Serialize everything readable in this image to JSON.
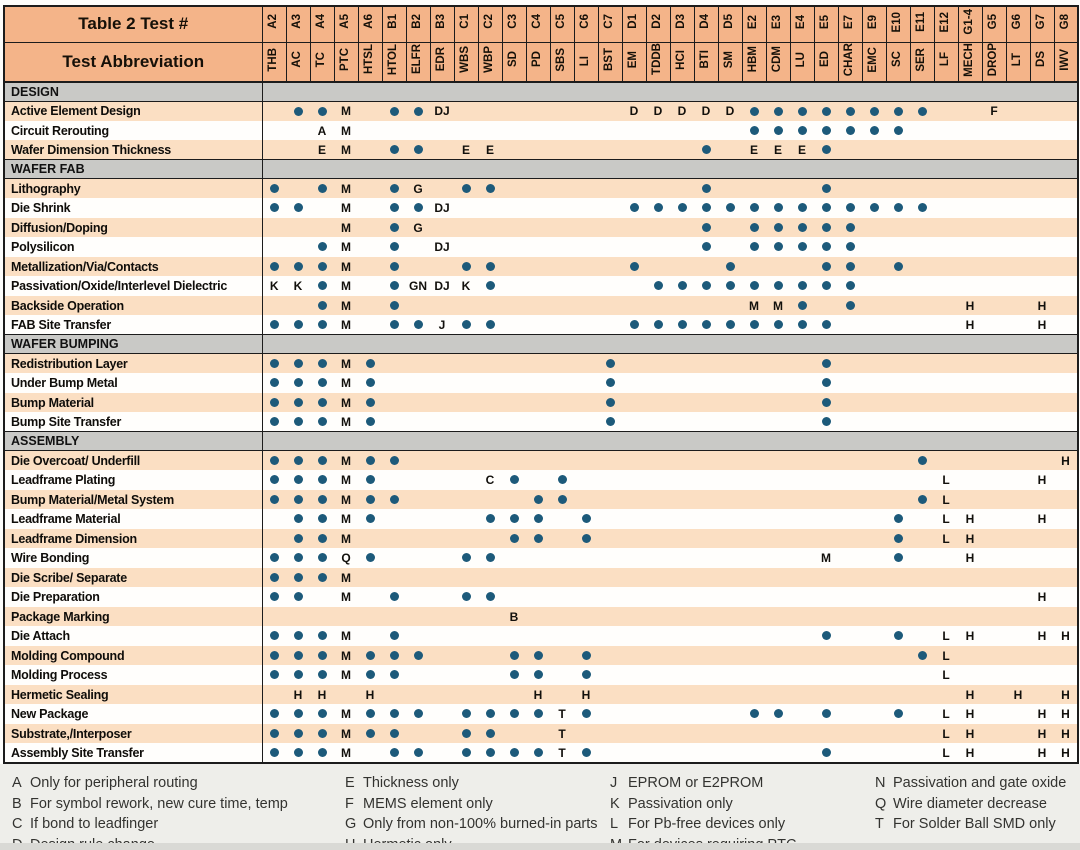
{
  "header": {
    "test_number_label": "Table 2 Test #",
    "abbreviation_label": "Test Abbreviation",
    "columns": [
      {
        "num": "A2",
        "abbr": "THB"
      },
      {
        "num": "A3",
        "abbr": "AC"
      },
      {
        "num": "A4",
        "abbr": "TC"
      },
      {
        "num": "A5",
        "abbr": "PTC"
      },
      {
        "num": "A6",
        "abbr": "HTSL"
      },
      {
        "num": "B1",
        "abbr": "HTOL"
      },
      {
        "num": "B2",
        "abbr": "ELFR"
      },
      {
        "num": "B3",
        "abbr": "EDR"
      },
      {
        "num": "C1",
        "abbr": "WBS"
      },
      {
        "num": "C2",
        "abbr": "WBP"
      },
      {
        "num": "C3",
        "abbr": "SD"
      },
      {
        "num": "C4",
        "abbr": "PD"
      },
      {
        "num": "C5",
        "abbr": "SBS"
      },
      {
        "num": "C6",
        "abbr": "LI"
      },
      {
        "num": "C7",
        "abbr": "BST"
      },
      {
        "num": "D1",
        "abbr": "EM"
      },
      {
        "num": "D2",
        "abbr": "TDDB"
      },
      {
        "num": "D3",
        "abbr": "HCI"
      },
      {
        "num": "D4",
        "abbr": "BTI"
      },
      {
        "num": "D5",
        "abbr": "SM"
      },
      {
        "num": "E2",
        "abbr": "HBM"
      },
      {
        "num": "E3",
        "abbr": "CDM"
      },
      {
        "num": "E4",
        "abbr": "LU"
      },
      {
        "num": "E5",
        "abbr": "ED"
      },
      {
        "num": "E7",
        "abbr": "CHAR"
      },
      {
        "num": "E9",
        "abbr": "EMC"
      },
      {
        "num": "E10",
        "abbr": "SC"
      },
      {
        "num": "E11",
        "abbr": "SER"
      },
      {
        "num": "E12",
        "abbr": "LF"
      },
      {
        "num": "G1-4",
        "abbr": "MECH"
      },
      {
        "num": "G5",
        "abbr": "DROP"
      },
      {
        "num": "G6",
        "abbr": "LT"
      },
      {
        "num": "G7",
        "abbr": "DS"
      },
      {
        "num": "G8",
        "abbr": "IWV"
      }
    ]
  },
  "sections": [
    {
      "name": "DESIGN",
      "rows": [
        {
          "label": "Active Element Design",
          "marks": {
            "A3": "●",
            "A4": "●",
            "A5": "M",
            "B1": "●",
            "B2": "●",
            "B3": "DJ",
            "D1": "D",
            "D2": "D",
            "D3": "D",
            "D4": "D",
            "D5": "D",
            "E2": "●",
            "E3": "●",
            "E4": "●",
            "E5": "●",
            "E7": "●",
            "E9": "●",
            "E10": "●",
            "E11": "●",
            "G5": "F"
          }
        },
        {
          "label": "Circuit Rerouting",
          "marks": {
            "A4": "A",
            "A5": "M",
            "E2": "●",
            "E3": "●",
            "E4": "●",
            "E5": "●",
            "E7": "●",
            "E9": "●",
            "E10": "●"
          }
        },
        {
          "label": "Wafer Dimension Thickness",
          "marks": {
            "A4": "E",
            "A5": "M",
            "B1": "●",
            "B2": "●",
            "C1": "E",
            "C2": "E",
            "D4": "●",
            "E2": "E",
            "E3": "E",
            "E4": "E",
            "E5": "●"
          }
        }
      ]
    },
    {
      "name": "WAFER FAB",
      "rows": [
        {
          "label": "Lithography",
          "marks": {
            "A2": "●",
            "A4": "●",
            "A5": "M",
            "B1": "●",
            "B2": "G",
            "C1": "●",
            "C2": "●",
            "D4": "●",
            "E5": "●"
          }
        },
        {
          "label": "Die Shrink",
          "marks": {
            "A2": "●",
            "A3": "●",
            "A5": "M",
            "B1": "●",
            "B2": "●",
            "B3": "DJ",
            "D1": "●",
            "D2": "●",
            "D3": "●",
            "D4": "●",
            "D5": "●",
            "E2": "●",
            "E3": "●",
            "E4": "●",
            "E5": "●",
            "E7": "●",
            "E9": "●",
            "E10": "●",
            "E11": "●"
          }
        },
        {
          "label": "Diffusion/Doping",
          "marks": {
            "A5": "M",
            "B1": "●",
            "B2": "G",
            "D4": "●",
            "E2": "●",
            "E3": "●",
            "E4": "●",
            "E5": "●",
            "E7": "●"
          }
        },
        {
          "label": "Polysilicon",
          "marks": {
            "A4": "●",
            "A5": "M",
            "B1": "●",
            "B3": "DJ",
            "D4": "●",
            "E2": "●",
            "E3": "●",
            "E4": "●",
            "E5": "●",
            "E7": "●"
          }
        },
        {
          "label": "Metallization/Via/Contacts",
          "marks": {
            "A2": "●",
            "A3": "●",
            "A4": "●",
            "A5": "M",
            "B1": "●",
            "C1": "●",
            "C2": "●",
            "D1": "●",
            "D5": "●",
            "E5": "●",
            "E7": "●",
            "E10": "●"
          }
        },
        {
          "label": "Passivation/Oxide/Interlevel Dielectric",
          "marks": {
            "A2": "K",
            "A3": "K",
            "A4": "●",
            "A5": "M",
            "B1": "●",
            "B2": "GN",
            "B3": "DJ",
            "C1": "K",
            "C2": "●",
            "D2": "●",
            "D3": "●",
            "D4": "●",
            "D5": "●",
            "E2": "●",
            "E3": "●",
            "E4": "●",
            "E5": "●",
            "E7": "●"
          }
        },
        {
          "label": "Backside Operation",
          "marks": {
            "A4": "●",
            "A5": "M",
            "B1": "●",
            "E2": "M",
            "E3": "M",
            "E4": "●",
            "E7": "●",
            "G1-4": "H",
            "G7": "H"
          }
        },
        {
          "label": "FAB Site Transfer",
          "marks": {
            "A2": "●",
            "A3": "●",
            "A4": "●",
            "A5": "M",
            "B1": "●",
            "B2": "●",
            "B3": "J",
            "C1": "●",
            "C2": "●",
            "D1": "●",
            "D2": "●",
            "D3": "●",
            "D4": "●",
            "D5": "●",
            "E2": "●",
            "E3": "●",
            "E4": "●",
            "E5": "●",
            "G1-4": "H",
            "G7": "H"
          }
        }
      ]
    },
    {
      "name": "WAFER BUMPING",
      "rows": [
        {
          "label": "Redistribution Layer",
          "marks": {
            "A2": "●",
            "A3": "●",
            "A4": "●",
            "A5": "M",
            "A6": "●",
            "C7": "●",
            "E5": "●"
          }
        },
        {
          "label": "Under Bump Metal",
          "marks": {
            "A2": "●",
            "A3": "●",
            "A4": "●",
            "A5": "M",
            "A6": "●",
            "C7": "●",
            "E5": "●"
          }
        },
        {
          "label": "Bump Material",
          "marks": {
            "A2": "●",
            "A3": "●",
            "A4": "●",
            "A5": "M",
            "A6": "●",
            "C7": "●",
            "E5": "●"
          }
        },
        {
          "label": "Bump Site Transfer",
          "marks": {
            "A2": "●",
            "A3": "●",
            "A4": "●",
            "A5": "M",
            "A6": "●",
            "C7": "●",
            "E5": "●"
          }
        }
      ]
    },
    {
      "name": "ASSEMBLY",
      "rows": [
        {
          "label": "Die Overcoat/ Underfill",
          "marks": {
            "A2": "●",
            "A3": "●",
            "A4": "●",
            "A5": "M",
            "A6": "●",
            "B1": "●",
            "E11": "●",
            "G8": "H"
          }
        },
        {
          "label": "Leadframe Plating",
          "marks": {
            "A2": "●",
            "A3": "●",
            "A4": "●",
            "A5": "M",
            "A6": "●",
            "C2": "C",
            "C3": "●",
            "C5": "●",
            "E12": "L",
            "G7": "H"
          }
        },
        {
          "label": "Bump Material/Metal System",
          "marks": {
            "A2": "●",
            "A3": "●",
            "A4": "●",
            "A5": "M",
            "A6": "●",
            "B1": "●",
            "C4": "●",
            "C5": "●",
            "E11": "●",
            "E12": "L"
          }
        },
        {
          "label": "Leadframe Material",
          "marks": {
            "A3": "●",
            "A4": "●",
            "A5": "M",
            "A6": "●",
            "C2": "●",
            "C3": "●",
            "C4": "●",
            "C6": "●",
            "E10": "●",
            "E12": "L",
            "G1-4": "H",
            "G7": "H"
          }
        },
        {
          "label": "Leadframe Dimension",
          "marks": {
            "A3": "●",
            "A4": "●",
            "A5": "M",
            "C3": "●",
            "C4": "●",
            "C6": "●",
            "E10": "●",
            "E12": "L",
            "G1-4": "H"
          }
        },
        {
          "label": "Wire Bonding",
          "marks": {
            "A2": "●",
            "A3": "●",
            "A4": "●",
            "A5": "Q",
            "A6": "●",
            "C1": "●",
            "C2": "●",
            "E5": "M",
            "E10": "●",
            "G1-4": "H"
          }
        },
        {
          "label": "Die Scribe/ Separate",
          "marks": {
            "A2": "●",
            "A3": "●",
            "A4": "●",
            "A5": "M"
          }
        },
        {
          "label": "Die Preparation",
          "marks": {
            "A2": "●",
            "A3": "●",
            "A5": "M",
            "B1": "●",
            "C1": "●",
            "C2": "●",
            "G7": "H"
          }
        },
        {
          "label": "Package Marking",
          "marks": {
            "C3": "B"
          }
        },
        {
          "label": "Die Attach",
          "marks": {
            "A2": "●",
            "A3": "●",
            "A4": "●",
            "A5": "M",
            "B1": "●",
            "E5": "●",
            "E10": "●",
            "E12": "L",
            "G1-4": "H",
            "G7": "H",
            "G8": "H"
          }
        },
        {
          "label": "Molding Compound",
          "marks": {
            "A2": "●",
            "A3": "●",
            "A4": "●",
            "A5": "M",
            "A6": "●",
            "B1": "●",
            "B2": "●",
            "C3": "●",
            "C4": "●",
            "C6": "●",
            "E11": "●",
            "E12": "L"
          }
        },
        {
          "label": "Molding Process",
          "marks": {
            "A2": "●",
            "A3": "●",
            "A4": "●",
            "A5": "M",
            "A6": "●",
            "B1": "●",
            "C3": "●",
            "C4": "●",
            "C6": "●",
            "E12": "L"
          }
        },
        {
          "label": "Hermetic Sealing",
          "marks": {
            "A3": "H",
            "A4": "H",
            "A6": "H",
            "C4": "H",
            "C6": "H",
            "G1-4": "H",
            "G6": "H",
            "G8": "H"
          }
        },
        {
          "label": "New Package",
          "marks": {
            "A2": "●",
            "A3": "●",
            "A4": "●",
            "A5": "M",
            "A6": "●",
            "B1": "●",
            "B2": "●",
            "C1": "●",
            "C2": "●",
            "C3": "●",
            "C4": "●",
            "C5": "T",
            "C6": "●",
            "E2": "●",
            "E3": "●",
            "E5": "●",
            "E10": "●",
            "E12": "L",
            "G1-4": "H",
            "G7": "H",
            "G8": "H"
          }
        },
        {
          "label": "Substrate,/Interposer",
          "marks": {
            "A2": "●",
            "A3": "●",
            "A4": "●",
            "A5": "M",
            "A6": "●",
            "B1": "●",
            "C1": "●",
            "C2": "●",
            "C5": "T",
            "E12": "L",
            "G1-4": "H",
            "G7": "H",
            "G8": "H"
          }
        },
        {
          "label": "Assembly Site Transfer",
          "marks": {
            "A2": "●",
            "A3": "●",
            "A4": "●",
            "A5": "M",
            "B1": "●",
            "B2": "●",
            "C1": "●",
            "C2": "●",
            "C3": "●",
            "C4": "●",
            "C5": "T",
            "C6": "●",
            "E5": "●",
            "E12": "L",
            "G1-4": "H",
            "G7": "H",
            "G8": "H"
          }
        }
      ]
    }
  ],
  "footnotes": {
    "columns": [
      [
        {
          "key": "A",
          "text": "Only for peripheral routing"
        },
        {
          "key": "B",
          "text": "For symbol rework, new cure time, temp"
        },
        {
          "key": "C",
          "text": "If bond to leadfinger"
        },
        {
          "key": "D",
          "text": "Design rule change"
        }
      ],
      [
        {
          "key": "E",
          "text": "Thickness only"
        },
        {
          "key": "F",
          "text": "MEMS element only"
        },
        {
          "key": "G",
          "text": "Only from non-100% burned-in parts"
        },
        {
          "key": "H",
          "text": "Hermetic only"
        }
      ],
      [
        {
          "key": "J",
          "text": "EPROM or E2PROM"
        },
        {
          "key": "K",
          "text": "Passivation only"
        },
        {
          "key": "L",
          "text": "For Pb-free devices only"
        },
        {
          "key": "M",
          "text": "For devices requiring PTC"
        }
      ],
      [
        {
          "key": "N",
          "text": "Passivation and gate oxide"
        },
        {
          "key": "Q",
          "text": "Wire diameter decrease"
        },
        {
          "key": "T",
          "text": "For Solder Ball SMD only"
        }
      ]
    ]
  },
  "colors": {
    "header_bg": "#f4b489",
    "section_bg": "#c9c9c6",
    "stripe_peach": "#fbdfc3",
    "dot": "#1d5a7a",
    "footnote_bg": "#eeeeea"
  }
}
